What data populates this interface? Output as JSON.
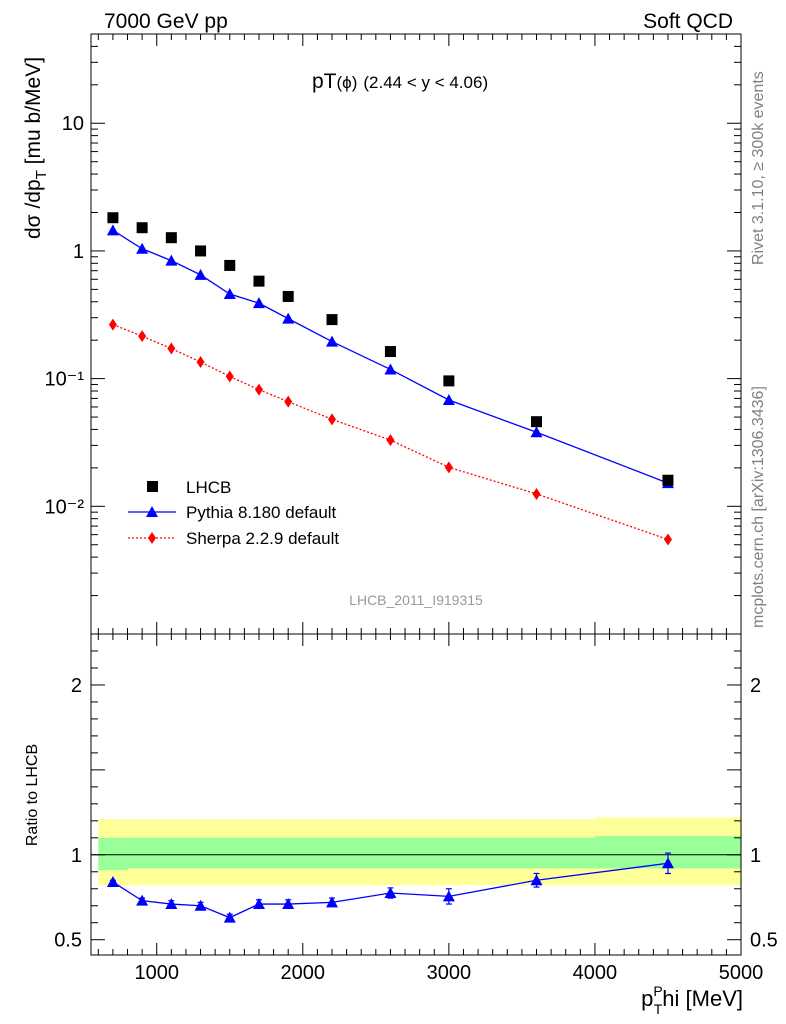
{
  "header": {
    "left": "7000 GeV pp",
    "right": "Soft QCD"
  },
  "side_labels": {
    "rivet": "Rivet 3.1.10, ≥ 300k events",
    "mcplots": "mcplots.cern.ch [arXiv:1306.3436]"
  },
  "plot_title": {
    "main": "pT",
    "phi": "(ϕ)",
    "range": "(2.44 < y < 4.06)"
  },
  "analysis_id": "LHCB_2011_I919315",
  "colors": {
    "data": "#000000",
    "pythia": "#0000ff",
    "sherpa": "#ff0000",
    "band_inner": "#99ff99",
    "band_outer": "#ffff99"
  },
  "chart_data": [
    {
      "type": "scatter",
      "yscale": "log",
      "xlim": [
        550,
        5000
      ],
      "ylim": [
        0.001,
        50
      ],
      "ylabel": "dσ /dp_T [mu b/MeV]",
      "y_tick_labels": [
        "10⁻²",
        "10⁻¹",
        "1",
        "10"
      ],
      "legend_position": "bottom-left",
      "series": [
        {
          "name": "LHCB",
          "marker": "square",
          "x": [
            700,
            900,
            1100,
            1300,
            1500,
            1700,
            1900,
            2200,
            2600,
            3000,
            3600,
            4500
          ],
          "y": [
            1.82,
            1.52,
            1.27,
            1.0,
            0.77,
            0.58,
            0.44,
            0.29,
            0.163,
            0.096,
            0.046,
            0.016
          ]
        },
        {
          "name": "Pythia 8.180 default",
          "marker": "triangle",
          "line": "solid",
          "x": [
            700,
            900,
            1100,
            1300,
            1500,
            1700,
            1900,
            2200,
            2600,
            3000,
            3600,
            4500
          ],
          "y": [
            1.45,
            1.04,
            0.84,
            0.65,
            0.46,
            0.39,
            0.295,
            0.195,
            0.118,
            0.068,
            0.038,
            0.0152
          ]
        },
        {
          "name": "Sherpa 2.2.9 default",
          "marker": "diamond",
          "line": "dotted",
          "x": [
            700,
            900,
            1100,
            1300,
            1500,
            1700,
            1900,
            2200,
            2600,
            3000,
            3600,
            4500
          ],
          "y": [
            0.265,
            0.215,
            0.172,
            0.135,
            0.104,
            0.082,
            0.066,
            0.048,
            0.033,
            0.0202,
            0.0125,
            0.0055
          ]
        }
      ]
    },
    {
      "type": "line",
      "xlim": [
        550,
        5000
      ],
      "ylim": [
        0.41,
        2.3
      ],
      "xlabel_main": "p",
      "xlabel_sup": "P",
      "xlabel_sub": "T",
      "xlabel_tail": "hi [MeV]",
      "ylabel": "Ratio to LHCB",
      "x_tick_labels": [
        "1000",
        "2000",
        "3000",
        "4000",
        "5000"
      ],
      "y_tick_labels": [
        "0.5",
        "1",
        "2"
      ],
      "reference_line": 1,
      "band_segments": [
        {
          "x": [
            600,
            800
          ],
          "inner": [
            0.91,
            1.1
          ],
          "outer": [
            0.82,
            1.21
          ]
        },
        {
          "x": [
            800,
            4000
          ],
          "inner": [
            0.92,
            1.1
          ],
          "outer": [
            0.82,
            1.21
          ]
        },
        {
          "x": [
            4000,
            5000
          ],
          "inner": [
            0.92,
            1.11
          ],
          "outer": [
            0.82,
            1.22
          ]
        }
      ],
      "series": [
        {
          "name": "Pythia 8.180 default",
          "x": [
            700,
            900,
            1100,
            1300,
            1500,
            1700,
            1900,
            2200,
            2600,
            3000,
            3600,
            4500
          ],
          "y": [
            0.84,
            0.73,
            0.71,
            0.7,
            0.63,
            0.71,
            0.71,
            0.72,
            0.775,
            0.755,
            0.85,
            0.95
          ],
          "err": [
            0.01,
            0.015,
            0.02,
            0.02,
            0.02,
            0.025,
            0.025,
            0.025,
            0.03,
            0.045,
            0.04,
            0.06
          ]
        }
      ]
    }
  ]
}
